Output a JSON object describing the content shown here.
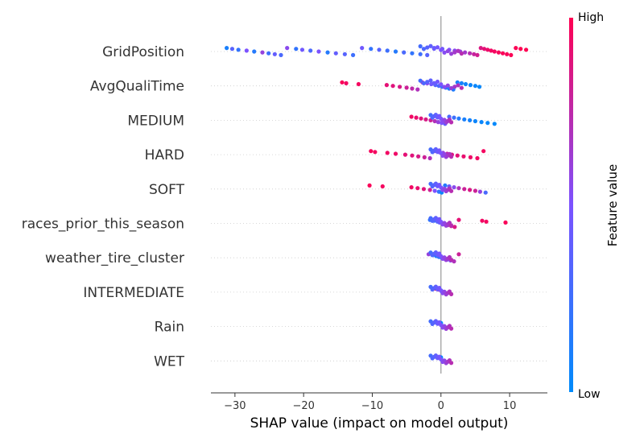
{
  "chart_data": {
    "type": "scatter",
    "subtype": "shap-beeswarm",
    "title": "",
    "xlabel": "SHAP value (impact on model output)",
    "ylabel": "",
    "xlim": [
      -33.5,
      15.5
    ],
    "x_ticks": [
      -30,
      -20,
      -10,
      0,
      10
    ],
    "x_tick_labels": [
      "−30",
      "−20",
      "−10",
      "0",
      "10"
    ],
    "grid": false,
    "colorbar": {
      "label": "Feature value",
      "high_label": "High",
      "low_label": "Low",
      "low_color": "#008bfb",
      "mid_color": "#7c52ff",
      "high_color": "#ff0052"
    },
    "features": [
      {
        "name": "GridPosition",
        "points": [
          [
            -31.2,
            0.1
          ],
          [
            -30.4,
            0.35
          ],
          [
            -29.5,
            0.2
          ],
          [
            -28.3,
            0.5
          ],
          [
            -27.2,
            0.15
          ],
          [
            -26.0,
            0.6
          ],
          [
            -25.1,
            0.25
          ],
          [
            -24.2,
            0.4
          ],
          [
            -23.3,
            0.3
          ],
          [
            -22.4,
            0.55
          ],
          [
            -21.1,
            0.2
          ],
          [
            -20.2,
            0.45
          ],
          [
            -19.0,
            0.3
          ],
          [
            -17.8,
            0.5
          ],
          [
            -16.5,
            0.15
          ],
          [
            -15.3,
            0.4
          ],
          [
            -14.0,
            0.35
          ],
          [
            -12.8,
            0.25
          ],
          [
            -11.5,
            0.45
          ],
          [
            -10.2,
            0.2
          ],
          [
            -9.0,
            0.35
          ],
          [
            -7.8,
            0.25
          ],
          [
            -6.6,
            0.15
          ],
          [
            -5.4,
            0.3
          ],
          [
            -4.2,
            0.2
          ],
          [
            -3.0,
            0.25
          ],
          [
            -2.0,
            0.35
          ],
          [
            -1.0,
            0.4
          ],
          [
            0.2,
            0.45
          ],
          [
            1.2,
            0.5
          ],
          [
            2.0,
            0.55
          ],
          [
            2.8,
            0.6
          ],
          [
            3.5,
            0.65
          ],
          [
            4.2,
            0.72
          ],
          [
            4.8,
            0.78
          ],
          [
            5.3,
            0.82
          ],
          [
            5.8,
            0.86
          ],
          [
            6.3,
            0.9
          ],
          [
            6.8,
            0.93
          ],
          [
            7.3,
            0.95
          ],
          [
            7.8,
            0.96
          ],
          [
            8.4,
            0.97
          ],
          [
            9.0,
            0.98
          ],
          [
            9.6,
            0.98
          ],
          [
            10.2,
            0.99
          ],
          [
            10.9,
            0.99
          ],
          [
            11.6,
            1.0
          ],
          [
            12.4,
            1.0
          ]
        ]
      },
      {
        "name": "AvgQualiTime",
        "points": [
          [
            -14.4,
            0.98
          ],
          [
            -13.8,
            0.95
          ],
          [
            -12.0,
            0.96
          ],
          [
            -7.9,
            0.9
          ],
          [
            -7.0,
            0.88
          ],
          [
            -6.0,
            0.85
          ],
          [
            -5.0,
            0.8
          ],
          [
            -4.2,
            0.75
          ],
          [
            -3.4,
            0.7
          ],
          [
            -2.7,
            0.62
          ],
          [
            -2.0,
            0.55
          ],
          [
            -1.4,
            0.45
          ],
          [
            -0.8,
            0.35
          ],
          [
            -0.3,
            0.3
          ],
          [
            0.2,
            0.25
          ],
          [
            0.7,
            0.2
          ],
          [
            1.2,
            0.15
          ],
          [
            1.8,
            0.12
          ],
          [
            2.4,
            0.1
          ],
          [
            3.0,
            0.08
          ],
          [
            3.6,
            0.06
          ],
          [
            4.3,
            0.05
          ],
          [
            5.0,
            0.04
          ],
          [
            5.6,
            0.03
          ]
        ]
      },
      {
        "name": "MEDIUM",
        "points": [
          [
            -4.3,
            0.95
          ],
          [
            -3.6,
            0.92
          ],
          [
            -2.9,
            0.88
          ],
          [
            -2.2,
            0.85
          ],
          [
            -1.5,
            0.8
          ],
          [
            -0.9,
            0.7
          ],
          [
            -0.4,
            0.6
          ],
          [
            0.1,
            0.5
          ],
          [
            0.6,
            0.4
          ],
          [
            1.2,
            0.3
          ],
          [
            1.9,
            0.25
          ],
          [
            2.6,
            0.15
          ],
          [
            3.4,
            0.1
          ],
          [
            4.2,
            0.08
          ],
          [
            5.0,
            0.05
          ],
          [
            5.9,
            0.04
          ],
          [
            6.8,
            0.03
          ],
          [
            7.8,
            0.02
          ]
        ]
      },
      {
        "name": "HARD",
        "points": [
          [
            -10.2,
            0.97
          ],
          [
            -9.6,
            0.96
          ],
          [
            -7.8,
            0.95
          ],
          [
            -6.6,
            0.94
          ],
          [
            -5.2,
            0.9
          ],
          [
            -4.2,
            0.88
          ],
          [
            -3.3,
            0.85
          ],
          [
            -2.4,
            0.8
          ],
          [
            -1.6,
            0.7
          ],
          [
            -0.9,
            0.6
          ],
          [
            -0.3,
            0.5
          ],
          [
            0.3,
            0.6
          ],
          [
            0.9,
            0.75
          ],
          [
            1.6,
            0.85
          ],
          [
            2.4,
            0.9
          ],
          [
            3.3,
            0.92
          ],
          [
            4.3,
            0.94
          ],
          [
            5.3,
            0.95
          ],
          [
            6.2,
            0.96
          ]
        ]
      },
      {
        "name": "SOFT",
        "points": [
          [
            -10.4,
            0.98
          ],
          [
            -8.5,
            0.96
          ],
          [
            -4.3,
            0.95
          ],
          [
            -3.4,
            0.92
          ],
          [
            -2.5,
            0.88
          ],
          [
            -1.6,
            0.8
          ],
          [
            -0.9,
            0.5
          ],
          [
            -0.3,
            0.2
          ],
          [
            0.1,
            0.05
          ],
          [
            0.6,
            0.15
          ],
          [
            1.2,
            0.4
          ],
          [
            1.9,
            0.55
          ],
          [
            2.6,
            0.7
          ],
          [
            3.4,
            0.8
          ],
          [
            4.2,
            0.85
          ],
          [
            5.0,
            0.8
          ],
          [
            5.7,
            0.6
          ],
          [
            6.5,
            0.3
          ]
        ]
      },
      {
        "name": "races_prior_this_season",
        "points": [
          [
            -1.6,
            0.2
          ],
          [
            -1.0,
            0.25
          ],
          [
            -0.5,
            0.3
          ],
          [
            -0.2,
            0.4
          ],
          [
            0.2,
            0.5
          ],
          [
            0.6,
            0.6
          ],
          [
            1.0,
            0.7
          ],
          [
            1.5,
            0.8
          ],
          [
            2.0,
            0.85
          ],
          [
            2.6,
            0.9
          ],
          [
            6.0,
            0.95
          ],
          [
            6.6,
            0.96
          ],
          [
            9.4,
            0.98
          ]
        ]
      },
      {
        "name": "weather_tire_cluster",
        "points": [
          [
            -1.8,
            0.6
          ],
          [
            -1.2,
            0.1
          ],
          [
            -0.7,
            0.15
          ],
          [
            -0.3,
            0.2
          ],
          [
            0.1,
            0.1
          ],
          [
            0.5,
            0.25
          ],
          [
            0.9,
            0.4
          ],
          [
            1.4,
            0.55
          ],
          [
            1.9,
            0.7
          ],
          [
            2.6,
            0.8
          ]
        ]
      },
      {
        "name": "INTERMEDIATE",
        "points": [
          [
            -0.8,
            0.95
          ],
          [
            -0.4,
            0.9
          ],
          [
            0.0,
            0.02
          ],
          [
            0.1,
            0.05
          ]
        ]
      },
      {
        "name": "Rain",
        "points": [
          [
            0.0,
            0.01
          ],
          [
            0.0,
            0.02
          ],
          [
            0.0,
            0.01
          ]
        ]
      },
      {
        "name": "WET",
        "points": [
          [
            0.0,
            0.01
          ],
          [
            0.0,
            0.02
          ],
          [
            0.0,
            0.01
          ]
        ]
      }
    ]
  }
}
